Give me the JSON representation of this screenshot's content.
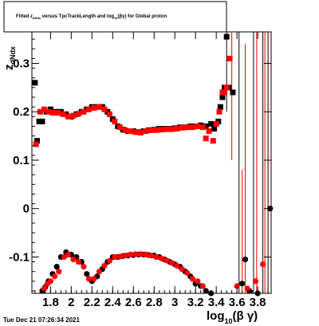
{
  "chart_data": {
    "type": "scatter",
    "title": "Fitted  z_dNdx  versus  TpcTrackLength and log10(βγ) for Global proton",
    "title_parts": {
      "pre": "Fitted  z",
      "sub1": "dNdx",
      "mid": "  versus  TpcTrackLength and log",
      "sub2": "10",
      "post": "(βγ) for Global proton"
    },
    "xlabel": "log10(βγ)",
    "xlabel_parts": {
      "pre": "log",
      "sub": "10",
      "post": "(β γ)"
    },
    "ylabel": "z_dNdx",
    "ylabel_parts": {
      "pre": "z",
      "sub": "dNdx"
    },
    "xlim": [
      1.62,
      3.93
    ],
    "ylim": [
      -0.175,
      0.365
    ],
    "x_ticks": [
      1.8,
      2,
      2.2,
      2.4,
      2.6,
      2.8,
      3,
      3.2,
      3.4,
      3.6,
      3.8
    ],
    "x_tick_labels": [
      "1.8",
      "2",
      "2.2",
      "2.4",
      "2.6",
      "2.8",
      "3",
      "3.2",
      "3.4",
      "3.6",
      "3.8"
    ],
    "y_ticks": [
      -0.1,
      0,
      0.1,
      0.2,
      0.3
    ],
    "y_tick_labels": [
      "-0.1",
      "0",
      "0.1",
      "0.2",
      "0.3"
    ],
    "grid": false,
    "legend": "none",
    "series": [
      {
        "marker": "square",
        "color": "#000000",
        "points": [
          [
            1.65,
            0.26
          ],
          [
            1.67,
            0.14
          ],
          [
            1.69,
            0.18
          ],
          [
            1.72,
            0.18
          ],
          [
            1.76,
            0.2
          ],
          [
            1.8,
            0.205
          ],
          [
            1.85,
            0.2
          ],
          [
            1.9,
            0.2
          ],
          [
            1.95,
            0.195
          ],
          [
            2.0,
            0.19
          ],
          [
            2.05,
            0.195
          ],
          [
            2.1,
            0.2
          ],
          [
            2.15,
            0.205
          ],
          [
            2.2,
            0.21
          ],
          [
            2.25,
            0.21
          ],
          [
            2.3,
            0.21
          ],
          [
            2.35,
            0.2
          ],
          [
            2.4,
            0.185
          ],
          [
            2.45,
            0.17
          ],
          [
            2.5,
            0.163
          ],
          [
            2.55,
            0.16
          ],
          [
            2.6,
            0.16
          ],
          [
            2.65,
            0.158
          ],
          [
            2.7,
            0.16
          ],
          [
            2.75,
            0.162
          ],
          [
            2.8,
            0.163
          ],
          [
            2.85,
            0.165
          ],
          [
            2.9,
            0.165
          ],
          [
            2.95,
            0.165
          ],
          [
            3.0,
            0.166
          ],
          [
            3.05,
            0.168
          ],
          [
            3.1,
            0.168
          ],
          [
            3.15,
            0.17
          ],
          [
            3.2,
            0.17
          ],
          [
            3.25,
            0.172
          ],
          [
            3.3,
            0.17
          ],
          [
            3.35,
            0.175
          ],
          [
            3.38,
            0.165
          ],
          [
            3.42,
            0.18
          ],
          [
            3.44,
            0.21
          ],
          [
            3.46,
            0.23
          ],
          [
            3.48,
            0.25
          ],
          [
            3.5,
            0.355
          ],
          [
            3.52,
            0.25
          ],
          [
            3.56,
            0.24
          ]
        ]
      },
      {
        "marker": "square",
        "color": "#ff0000",
        "points": [
          [
            1.66,
            0.133
          ],
          [
            1.7,
            0.2
          ],
          [
            1.74,
            0.205
          ],
          [
            1.78,
            0.2
          ],
          [
            1.82,
            0.198
          ],
          [
            1.87,
            0.198
          ],
          [
            1.92,
            0.195
          ],
          [
            1.97,
            0.19
          ],
          [
            2.02,
            0.192
          ],
          [
            2.07,
            0.196
          ],
          [
            2.12,
            0.2
          ],
          [
            2.17,
            0.205
          ],
          [
            2.22,
            0.208
          ],
          [
            2.27,
            0.21
          ],
          [
            2.32,
            0.205
          ],
          [
            2.37,
            0.195
          ],
          [
            2.42,
            0.18
          ],
          [
            2.47,
            0.168
          ],
          [
            2.52,
            0.162
          ],
          [
            2.57,
            0.16
          ],
          [
            2.62,
            0.158
          ],
          [
            2.67,
            0.157
          ],
          [
            2.72,
            0.16
          ],
          [
            2.77,
            0.162
          ],
          [
            2.82,
            0.162
          ],
          [
            2.87,
            0.163
          ],
          [
            2.92,
            0.164
          ],
          [
            2.97,
            0.164
          ],
          [
            3.02,
            0.165
          ],
          [
            3.07,
            0.167
          ],
          [
            3.12,
            0.168
          ],
          [
            3.17,
            0.168
          ],
          [
            3.22,
            0.17
          ],
          [
            3.27,
            0.168
          ],
          [
            3.3,
            0.145
          ],
          [
            3.33,
            0.16
          ],
          [
            3.37,
            0.14
          ],
          [
            3.4,
            0.175
          ],
          [
            3.43,
            0.2
          ],
          [
            3.46,
            0.24
          ],
          [
            3.48,
            0.24
          ],
          [
            3.5,
            0.25
          ],
          [
            3.53,
            0.31
          ]
        ]
      },
      {
        "marker": "circle",
        "color": "#000000",
        "points": [
          [
            1.72,
            -0.17
          ],
          [
            1.75,
            -0.162
          ],
          [
            1.78,
            -0.15
          ],
          [
            1.82,
            -0.135
          ],
          [
            1.86,
            -0.12
          ],
          [
            1.9,
            -0.1
          ],
          [
            1.95,
            -0.09
          ],
          [
            2.0,
            -0.095
          ],
          [
            2.05,
            -0.1
          ],
          [
            2.1,
            -0.11
          ],
          [
            2.15,
            -0.135
          ],
          [
            2.2,
            -0.15
          ],
          [
            2.25,
            -0.14
          ],
          [
            2.3,
            -0.125
          ],
          [
            2.35,
            -0.11
          ],
          [
            2.4,
            -0.1
          ],
          [
            2.45,
            -0.1
          ],
          [
            2.5,
            -0.098
          ],
          [
            2.55,
            -0.097
          ],
          [
            2.6,
            -0.096
          ],
          [
            2.65,
            -0.095
          ],
          [
            2.7,
            -0.095
          ],
          [
            2.75,
            -0.096
          ],
          [
            2.8,
            -0.097
          ],
          [
            2.85,
            -0.1
          ],
          [
            2.9,
            -0.105
          ],
          [
            2.95,
            -0.11
          ],
          [
            3.0,
            -0.115
          ],
          [
            3.05,
            -0.12
          ],
          [
            3.1,
            -0.13
          ],
          [
            3.15,
            -0.14
          ],
          [
            3.2,
            -0.155
          ],
          [
            3.25,
            -0.16
          ],
          [
            3.3,
            -0.17
          ],
          [
            3.35,
            -0.175
          ],
          [
            3.65,
            -0.155
          ],
          [
            3.68,
            -0.105
          ],
          [
            3.72,
            -0.17
          ],
          [
            3.8,
            -0.175
          ],
          [
            3.92,
            0.0
          ]
        ]
      },
      {
        "marker": "circle",
        "color": "#ff0000",
        "points": [
          [
            1.74,
            -0.165
          ],
          [
            1.77,
            -0.155
          ],
          [
            1.8,
            -0.15
          ],
          [
            1.84,
            -0.14
          ],
          [
            1.88,
            -0.13
          ],
          [
            1.93,
            -0.1
          ],
          [
            1.97,
            -0.095
          ],
          [
            2.02,
            -0.105
          ],
          [
            2.07,
            -0.11
          ],
          [
            2.12,
            -0.12
          ],
          [
            2.17,
            -0.145
          ],
          [
            2.22,
            -0.145
          ],
          [
            2.27,
            -0.13
          ],
          [
            2.32,
            -0.118
          ],
          [
            2.37,
            -0.108
          ],
          [
            2.42,
            -0.1
          ],
          [
            2.47,
            -0.099
          ],
          [
            2.52,
            -0.097
          ],
          [
            2.57,
            -0.095
          ],
          [
            2.62,
            -0.094
          ],
          [
            2.67,
            -0.094
          ],
          [
            2.72,
            -0.095
          ],
          [
            2.77,
            -0.097
          ],
          [
            2.82,
            -0.1
          ],
          [
            2.87,
            -0.103
          ],
          [
            2.92,
            -0.107
          ],
          [
            2.97,
            -0.112
          ],
          [
            3.02,
            -0.118
          ],
          [
            3.07,
            -0.125
          ],
          [
            3.12,
            -0.133
          ],
          [
            3.17,
            -0.145
          ],
          [
            3.22,
            -0.15
          ],
          [
            3.27,
            -0.16
          ],
          [
            3.6,
            -0.16
          ],
          [
            3.7,
            -0.165
          ],
          [
            3.78,
            -0.15
          ],
          [
            3.85,
            -0.115
          ]
        ]
      }
    ],
    "error_bars": [
      {
        "x": 3.5,
        "y_low": 0.2,
        "y_high": 0.365,
        "color": "#000000"
      },
      {
        "x": 3.55,
        "y_low": 0.1,
        "y_high": 0.365,
        "color": "#ff0000"
      },
      {
        "x": 3.62,
        "y_low": -0.175,
        "y_high": 0.365,
        "color": "#000000"
      },
      {
        "x": 3.65,
        "y_low": -0.175,
        "y_high": 0.08,
        "color": "#ff0000"
      },
      {
        "x": 3.68,
        "y_low": -0.175,
        "y_high": 0.34,
        "color": "#ff0000"
      },
      {
        "x": 3.76,
        "y_low": -0.175,
        "y_high": 0.365,
        "color": "#000000"
      },
      {
        "x": 3.79,
        "y_low": -0.175,
        "y_high": 0.365,
        "color": "#ff0000"
      },
      {
        "x": 3.85,
        "y_low": -0.175,
        "y_high": 0.365,
        "color": "#000000"
      },
      {
        "x": 3.87,
        "y_low": -0.175,
        "y_high": 0.365,
        "color": "#ff0000"
      },
      {
        "x": 3.9,
        "y_low": -0.175,
        "y_high": 0.365,
        "color": "#000000"
      }
    ]
  },
  "datestamp": "Tue Dec 21 07:26:34 2021"
}
